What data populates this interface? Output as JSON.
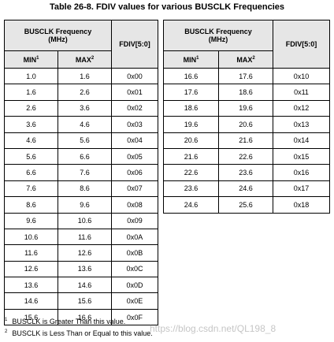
{
  "title": "Table 26-8. FDIV values for various BUSCLK Frequencies",
  "tables": [
    {
      "header": {
        "group": [
          "BUSCLK Frequency",
          "(MHz)"
        ],
        "fdiv": "FDIV[5:0]",
        "min": "MIN",
        "min_sup": "1",
        "max": "MAX",
        "max_sup": "2"
      },
      "rows": [
        [
          "1.0",
          "1.6",
          "0x00"
        ],
        [
          "1.6",
          "2.6",
          "0x01"
        ],
        [
          "2.6",
          "3.6",
          "0x02"
        ],
        [
          "3.6",
          "4.6",
          "0x03"
        ],
        [
          "4.6",
          "5.6",
          "0x04"
        ],
        [
          "5.6",
          "6.6",
          "0x05"
        ],
        [
          "6.6",
          "7.6",
          "0x06"
        ],
        [
          "7.6",
          "8.6",
          "0x07"
        ],
        [
          "8.6",
          "9.6",
          "0x08"
        ],
        [
          "9.6",
          "10.6",
          "0x09"
        ],
        [
          "10.6",
          "11.6",
          "0x0A"
        ],
        [
          "11.6",
          "12.6",
          "0x0B"
        ],
        [
          "12.6",
          "13.6",
          "0x0C"
        ],
        [
          "13.6",
          "14.6",
          "0x0D"
        ],
        [
          "14.6",
          "15.6",
          "0x0E"
        ],
        [
          "15.6",
          "16.6",
          "0x0F"
        ]
      ]
    },
    {
      "header": {
        "group": [
          "BUSCLK Frequency",
          "(MHz)"
        ],
        "fdiv": "FDIV[5:0]",
        "min": "MIN",
        "min_sup": "1",
        "max": "MAX",
        "max_sup": "2"
      },
      "rows": [
        [
          "16.6",
          "17.6",
          "0x10"
        ],
        [
          "17.6",
          "18.6",
          "0x11"
        ],
        [
          "18.6",
          "19.6",
          "0x12"
        ],
        [
          "19.6",
          "20.6",
          "0x13"
        ],
        [
          "20.6",
          "21.6",
          "0x14"
        ],
        [
          "21.6",
          "22.6",
          "0x15"
        ],
        [
          "22.6",
          "23.6",
          "0x16"
        ],
        [
          "23.6",
          "24.6",
          "0x17"
        ],
        [
          "24.6",
          "25.6",
          "0x18"
        ]
      ]
    }
  ],
  "footnotes": [
    {
      "mark": "1",
      "text": "BUSCLK is Greater Than this value."
    },
    {
      "mark": "2",
      "text": "BUSCLK is Less Than or Equal to this value."
    }
  ],
  "watermark": "https://blog.csdn.net/QL198_8"
}
